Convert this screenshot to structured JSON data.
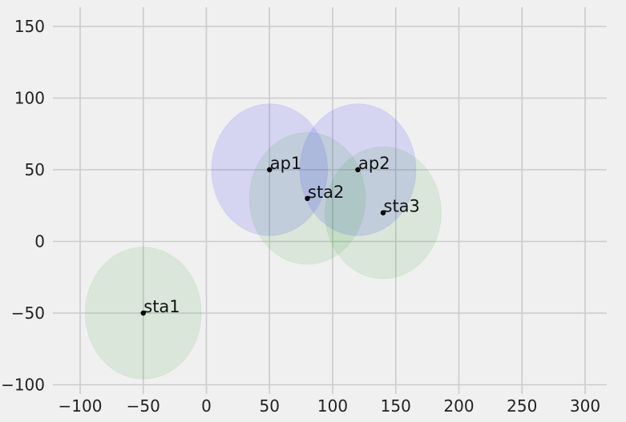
{
  "chart_data": {
    "type": "scatter",
    "title": "",
    "xlabel": "",
    "ylabel": "",
    "xlim": [
      -115,
      320
    ],
    "ylim": [
      -105,
      160
    ],
    "x_ticks": [
      -100,
      -50,
      0,
      50,
      100,
      150,
      200,
      250,
      300
    ],
    "x_tick_labels": [
      "−100",
      "−50",
      "0",
      "50",
      "100",
      "150",
      "200",
      "250",
      "300"
    ],
    "y_ticks": [
      -100,
      -50,
      0,
      50,
      100,
      150
    ],
    "y_tick_labels": [
      "−100",
      "−50",
      "0",
      "50",
      "100",
      "150"
    ],
    "grid": true,
    "points": [
      {
        "label": "ap1",
        "x": 50,
        "y": 50,
        "range": 46,
        "kind": "ap"
      },
      {
        "label": "ap2",
        "x": 120,
        "y": 50,
        "range": 46,
        "kind": "ap"
      },
      {
        "label": "sta1",
        "x": -50,
        "y": -50,
        "range": 46,
        "kind": "sta"
      },
      {
        "label": "sta2",
        "x": 80,
        "y": 30,
        "range": 46,
        "kind": "sta"
      },
      {
        "label": "sta3",
        "x": 140,
        "y": 20,
        "range": 46,
        "kind": "sta"
      }
    ],
    "colors": {
      "ap": "#0000ff",
      "sta": "#008000",
      "marker": "#000000",
      "grid": "#cbcbcb",
      "background": "#f0f0f0"
    }
  }
}
